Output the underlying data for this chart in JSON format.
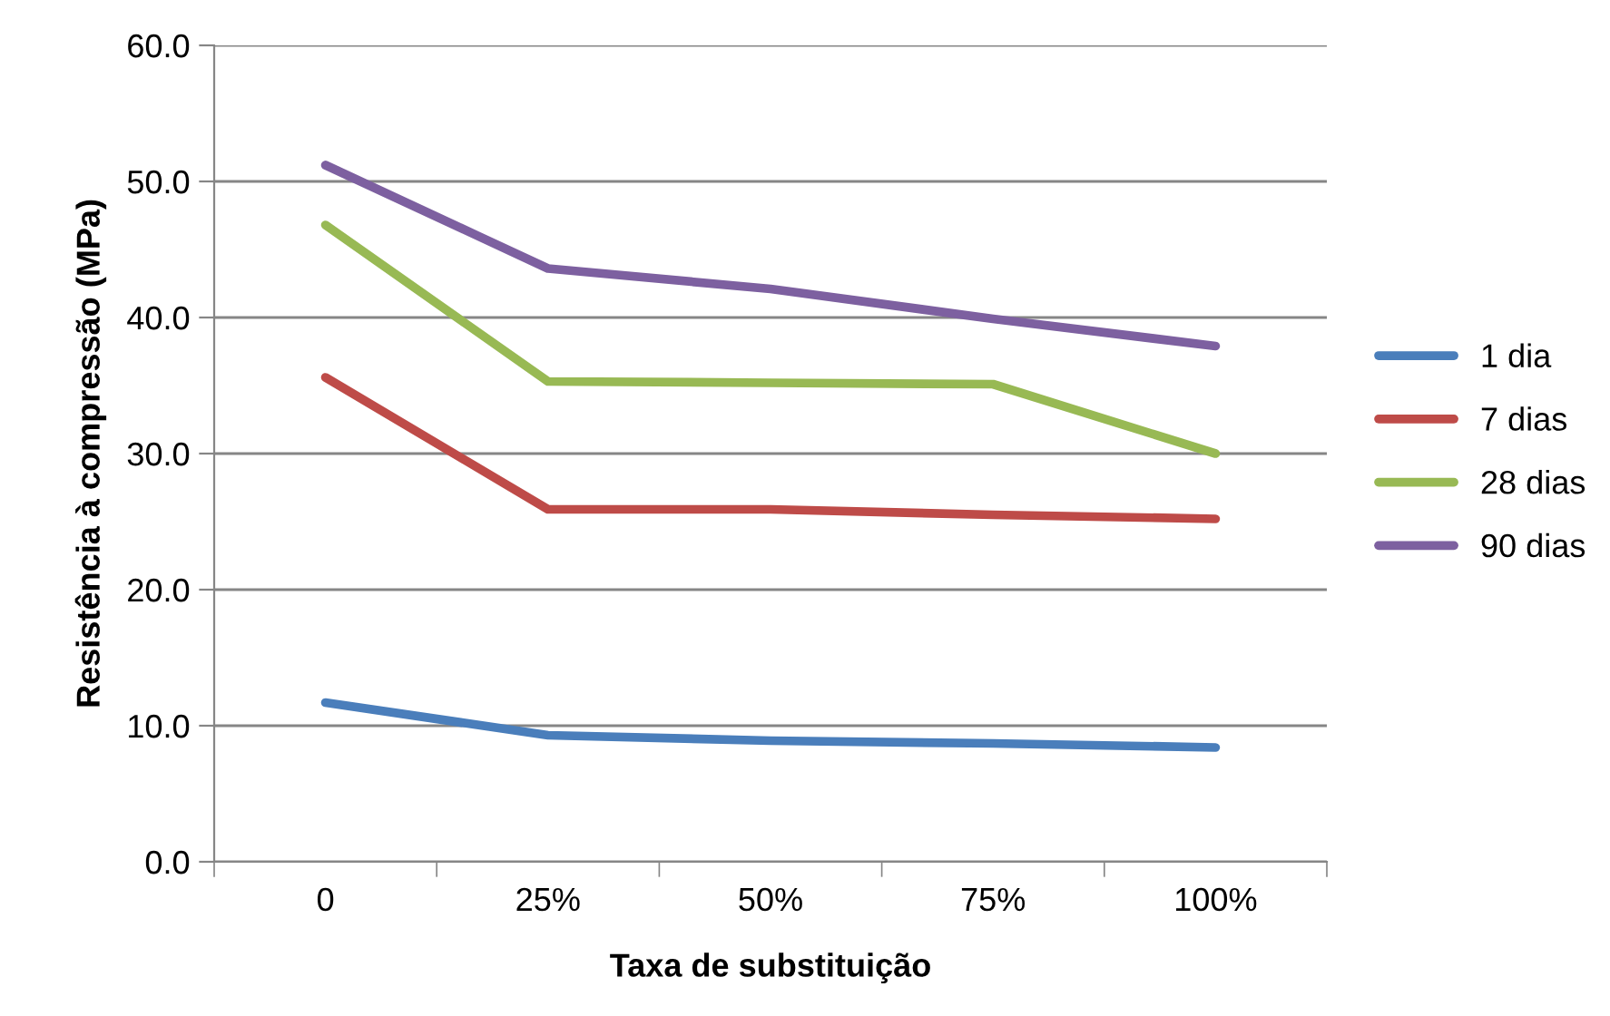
{
  "chart_data": {
    "type": "line",
    "xlabel": "Taxa de substituição",
    "ylabel": "Resistência à compressão (MPa)",
    "categories": [
      "0",
      "25%",
      "50%",
      "75%",
      "100%"
    ],
    "series": [
      {
        "name": "1 dia",
        "color": "#4a7ebb",
        "values": [
          11.7,
          9.3,
          8.9,
          8.7,
          8.4
        ]
      },
      {
        "name": "7 dias",
        "color": "#be4b48",
        "values": [
          35.6,
          25.9,
          25.9,
          25.5,
          25.2
        ]
      },
      {
        "name": "28 dias",
        "color": "#98b954",
        "values": [
          46.8,
          35.3,
          35.2,
          35.1,
          30.0
        ]
      },
      {
        "name": "90 dias",
        "color": "#7d60a0",
        "values": [
          51.2,
          43.6,
          42.1,
          39.9,
          37.9
        ]
      }
    ],
    "ylim": [
      0,
      60
    ],
    "yticks": [
      {
        "value": 0,
        "label": "0.0"
      },
      {
        "value": 10,
        "label": "10.0"
      },
      {
        "value": 20,
        "label": "20.0"
      },
      {
        "value": 30,
        "label": "30.0"
      },
      {
        "value": 40,
        "label": "40.0"
      },
      {
        "value": 50,
        "label": "50.0"
      },
      {
        "value": 60,
        "label": "60.0"
      }
    ],
    "grid": "y",
    "legend": "right",
    "marker": "none",
    "line_style": "solid"
  }
}
